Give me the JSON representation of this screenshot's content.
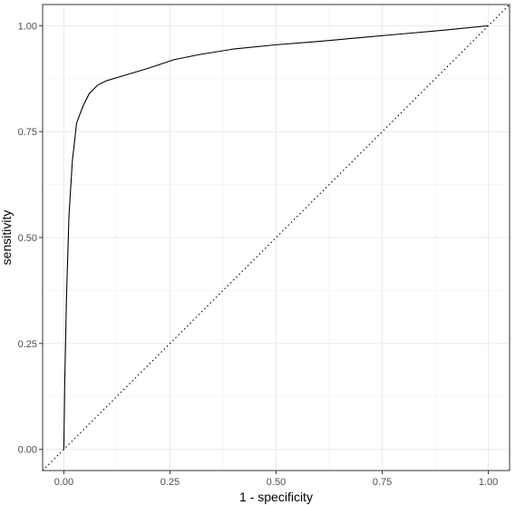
{
  "chart_data": {
    "type": "line",
    "title": "",
    "xlabel": "1 - specificity",
    "ylabel": "sensitivity",
    "xlim": [
      -0.05,
      1.05
    ],
    "ylim": [
      -0.05,
      1.05
    ],
    "x_ticks": [
      0.0,
      0.25,
      0.5,
      0.75,
      1.0
    ],
    "y_ticks": [
      0.0,
      0.25,
      0.5,
      0.75,
      1.0
    ],
    "x_tick_labels": [
      "0.00",
      "0.25",
      "0.50",
      "0.75",
      "1.00"
    ],
    "y_tick_labels": [
      "0.00",
      "0.25",
      "0.50",
      "0.75",
      "1.00"
    ],
    "grid": true,
    "legend": "none",
    "series": [
      {
        "style": "solid",
        "color": "#000000",
        "x": [
          0.0,
          0.002,
          0.006,
          0.012,
          0.02,
          0.03,
          0.045,
          0.06,
          0.08,
          0.1,
          0.15,
          0.2,
          0.26,
          0.32,
          0.4,
          0.5,
          0.6,
          0.7,
          0.8,
          0.9,
          1.0
        ],
        "y": [
          0.0,
          0.15,
          0.35,
          0.55,
          0.68,
          0.77,
          0.81,
          0.84,
          0.86,
          0.87,
          0.885,
          0.9,
          0.92,
          0.932,
          0.945,
          0.955,
          0.963,
          0.972,
          0.981,
          0.99,
          1.0
        ]
      },
      {
        "style": "dotted",
        "color": "#000000",
        "x": [
          -0.05,
          1.05
        ],
        "y": [
          -0.05,
          1.05
        ]
      }
    ]
  }
}
